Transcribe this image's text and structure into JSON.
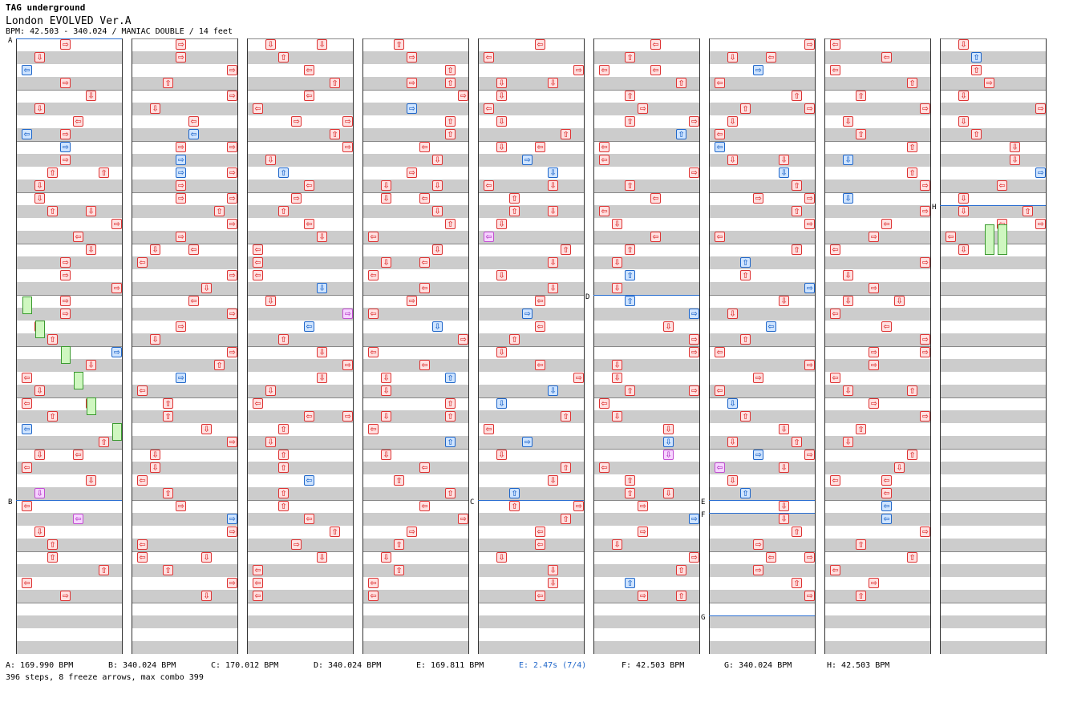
{
  "header": {
    "artist": "TAG underground",
    "title": "London EVOLVED Ver.A",
    "meta": "BPM: 42.503 - 340.024 / MANIAC DOUBLE / 14 feet"
  },
  "colors": {
    "step_red": "#dd3333",
    "step_blue": "#1f66c9",
    "step_pink": "#c24ed2",
    "freeze_green": "#cff7c0",
    "bpm_change_line": "#2b6fd1",
    "stripe_gray": "#cccccc"
  },
  "icons": {
    "left": "left-arrow-icon",
    "down": "down-arrow-icon",
    "up": "up-arrow-icon",
    "right": "right-arrow-icon"
  },
  "markers": [
    "A",
    "B",
    "C",
    "D",
    "E",
    "F",
    "G",
    "H"
  ],
  "legend": [
    "A: 169.990 BPM",
    "B: 340.024 BPM",
    "C: 170.012 BPM",
    "D: 340.024 BPM",
    "E: 169.811 BPM",
    "E: 2.47s (7/4)",
    "F: 42.503 BPM",
    "G: 340.024 BPM",
    "H: 42.503 BPM"
  ],
  "summary": "396 steps, 8 freeze arrows, max combo 399"
}
